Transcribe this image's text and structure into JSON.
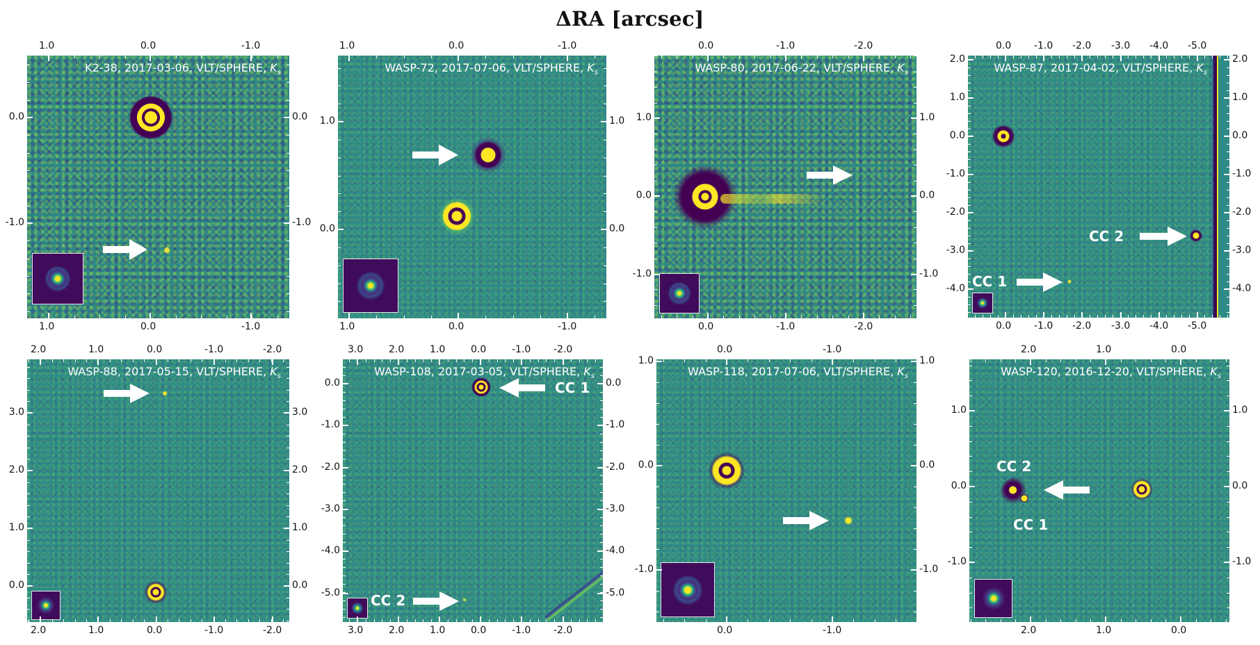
{
  "figure": {
    "title": "ΔRA [arcsec]",
    "colors": {
      "background_teal": "#2f8b86",
      "viridis_yellow": "#fde725",
      "viridis_dark": "#440154",
      "viridis_green": "#5ec962",
      "arrow": "#ffffff",
      "text": "#111111"
    }
  },
  "chart_data": [
    {
      "type": "heatmap",
      "title": "K2-38, 2017-03-06, VLT/SPHERE, Ks",
      "target": "K2-38",
      "date": "2017-03-06",
      "instrument": "VLT/SPHERE",
      "band": "Ks",
      "xlabel": "ΔRA [arcsec]",
      "x_ticks": [
        "1.0",
        "0.0",
        "-1.0"
      ],
      "y_ticks": [
        "0.0",
        "-1.0"
      ],
      "xlim": [
        1.22,
        -1.38
      ],
      "ylim": [
        -1.98,
        0.62
      ],
      "host_star": [
        0.0,
        0.0
      ],
      "companions": [
        {
          "label": "",
          "x": -0.15,
          "y": -1.37
        }
      ],
      "inset_psf": true
    },
    {
      "type": "heatmap",
      "title": "WASP-72, 2017-07-06, VLT/SPHERE, Ks",
      "target": "WASP-72",
      "date": "2017-07-06",
      "instrument": "VLT/SPHERE",
      "band": "Ks",
      "xlabel": "ΔRA [arcsec]",
      "x_ticks": [
        "1.0",
        "0.0",
        "-1.0"
      ],
      "y_ticks": [
        "1.0",
        "0.0"
      ],
      "xlim": [
        1.1,
        -1.3
      ],
      "ylim": [
        -1.0,
        1.45
      ],
      "host_star": [
        0.0,
        0.0
      ],
      "companions": [
        {
          "label": "",
          "x": -0.28,
          "y": 0.57
        }
      ],
      "inset_psf": true
    },
    {
      "type": "heatmap",
      "title": "WASP-80, 2017-06-22, VLT/SPHERE, Ks",
      "target": "WASP-80",
      "date": "2017-06-22",
      "instrument": "VLT/SPHERE",
      "band": "Ks",
      "xlabel": "ΔRA [arcsec]",
      "x_ticks": [
        "0.0",
        "-1.0",
        "-2.0"
      ],
      "y_ticks": [
        "1.0",
        "0.0",
        "-1.0"
      ],
      "xlim": [
        0.63,
        -2.65
      ],
      "ylim": [
        -1.55,
        1.8
      ],
      "host_star": [
        0.0,
        0.0
      ],
      "companions": [
        {
          "label": "",
          "x": -2.1,
          "y": 0.28
        }
      ],
      "inset_psf": true
    },
    {
      "type": "heatmap",
      "title": "WASP-87, 2017-04-02, VLT/SPHERE, Ks",
      "target": "WASP-87",
      "date": "2017-04-02",
      "instrument": "VLT/SPHERE",
      "band": "Ks",
      "xlabel": "ΔRA [arcsec]",
      "x_ticks": [
        "0.0",
        "-1.0",
        "-2.0",
        "-3.0",
        "-4.0",
        "-5.0"
      ],
      "y_ticks": [
        "2.0",
        "1.0",
        "0.0",
        "-1.0",
        "-2.0",
        "-3.0",
        "-4.0"
      ],
      "xlim": [
        0.9,
        -5.8
      ],
      "ylim": [
        -4.65,
        2.05
      ],
      "host_star": [
        0.0,
        0.0
      ],
      "companions": [
        {
          "label": "CC 1",
          "x": -1.7,
          "y": -3.75
        },
        {
          "label": "CC 2",
          "x": -4.95,
          "y": -2.55
        }
      ],
      "inset_psf": true
    },
    {
      "type": "heatmap",
      "title": "WASP-88, 2017-05-15, VLT/SPHERE, Ks",
      "target": "WASP-88",
      "date": "2017-05-15",
      "instrument": "VLT/SPHERE",
      "band": "Ks",
      "xlabel": "ΔRA [arcsec]",
      "x_ticks": [
        "2.0",
        "1.0",
        "0.0",
        "-1.0",
        "-2.0"
      ],
      "y_ticks": [
        "3.0",
        "2.0",
        "1.0",
        "0.0"
      ],
      "xlim": [
        2.23,
        -2.3
      ],
      "ylim": [
        -0.63,
        3.9
      ],
      "host_star": [
        0.0,
        0.0
      ],
      "companions": [
        {
          "label": "",
          "x": -0.15,
          "y": 3.33
        }
      ],
      "inset_psf": true
    },
    {
      "type": "heatmap",
      "title": "WASP-108, 2017-03-05, VLT/SPHERE, Ks",
      "target": "WASP-108",
      "date": "2017-03-05",
      "instrument": "VLT/SPHERE",
      "band": "Ks",
      "xlabel": "ΔRA [arcsec]",
      "x_ticks": [
        "3.0",
        "2.0",
        "1.0",
        "0.0",
        "-1.0",
        "-2.0"
      ],
      "y_ticks": [
        "0.0",
        "-1.0",
        "-2.0",
        "-3.0",
        "-4.0",
        "-5.0"
      ],
      "xlim": [
        3.3,
        -2.9
      ],
      "ylim": [
        -5.6,
        0.6
      ],
      "host_star": [
        0.0,
        0.0
      ],
      "companions": [
        {
          "label": "CC 1",
          "x": -0.05,
          "y": -0.1
        },
        {
          "label": "CC 2",
          "x": 0.38,
          "y": -5.02
        }
      ],
      "inset_psf": true
    },
    {
      "type": "heatmap",
      "title": "WASP-118, 2017-07-06, VLT/SPHERE, Ks",
      "target": "WASP-118",
      "date": "2017-07-06",
      "instrument": "VLT/SPHERE",
      "band": "Ks",
      "xlabel": "ΔRA [arcsec]",
      "x_ticks": [
        "0.0",
        "-1.0"
      ],
      "y_ticks": [
        "1.0",
        "0.0",
        "-1.0"
      ],
      "xlim": [
        0.67,
        -1.8
      ],
      "ylim": [
        -1.45,
        1.0
      ],
      "host_star": [
        0.0,
        0.0
      ],
      "companions": [
        {
          "label": "",
          "x": -1.16,
          "y": -0.46
        }
      ],
      "inset_psf": true
    },
    {
      "type": "heatmap",
      "title": "WASP-120, 2016-12-20, VLT/SPHERE, Ks",
      "target": "WASP-120",
      "date": "2016-12-20",
      "instrument": "VLT/SPHERE",
      "band": "Ks",
      "xlabel": "ΔRA [arcsec]",
      "x_ticks": [
        "2.0",
        "1.0",
        "0.0"
      ],
      "y_ticks": [
        "1.0",
        "0.0",
        "-1.0"
      ],
      "xlim": [
        2.8,
        -0.6
      ],
      "ylim": [
        -1.75,
        1.7
      ],
      "host_star": [
        0.0,
        0.0
      ],
      "companions": [
        {
          "label": "CC 2",
          "x": 2.2,
          "y": -0.05
        },
        {
          "label": "CC 1",
          "x": 2.1,
          "y": -0.13
        }
      ],
      "inset_psf": true
    }
  ],
  "panels": [
    {
      "name": "K2-38",
      "label_main": "K2-38, 2017-03-06, VLT/SPHERE, ",
      "band": "K",
      "band_sub": "s",
      "x_ticks": [
        "1.0",
        "0.0",
        "-1.0"
      ],
      "y_ticks": [
        "0.0",
        "-1.0"
      ],
      "cc": []
    },
    {
      "name": "WASP-72",
      "label_main": "WASP-72, 2017-07-06, VLT/SPHERE, ",
      "band": "K",
      "band_sub": "s",
      "x_ticks": [
        "1.0",
        "0.0",
        "-1.0"
      ],
      "y_ticks": [
        "1.0",
        "0.0"
      ],
      "cc": []
    },
    {
      "name": "WASP-80",
      "label_main": "WASP-80, 2017-06-22, VLT/SPHERE, ",
      "band": "K",
      "band_sub": "s",
      "x_ticks": [
        "0.0",
        "-1.0",
        "-2.0"
      ],
      "y_ticks": [
        "1.0",
        "0.0",
        "-1.0"
      ],
      "cc": []
    },
    {
      "name": "WASP-87",
      "label_main": "WASP-87, 2017-04-02, VLT/SPHERE, ",
      "band": "K",
      "band_sub": "s",
      "x_ticks": [
        "0.0",
        "-1.0",
        "-2.0",
        "-3.0",
        "-4.0",
        "-5.0"
      ],
      "y_ticks": [
        "2.0",
        "1.0",
        "0.0",
        "-1.0",
        "-2.0",
        "-3.0",
        "-4.0"
      ],
      "cc": [
        "CC 1",
        "CC 2"
      ]
    },
    {
      "name": "WASP-88",
      "label_main": "WASP-88, 2017-05-15, VLT/SPHERE, ",
      "band": "K",
      "band_sub": "s",
      "x_ticks": [
        "2.0",
        "1.0",
        "0.0",
        "-1.0",
        "-2.0"
      ],
      "y_ticks": [
        "3.0",
        "2.0",
        "1.0",
        "0.0"
      ],
      "cc": []
    },
    {
      "name": "WASP-108",
      "label_main": "WASP-108, 2017-03-05, VLT/SPHERE, ",
      "band": "K",
      "band_sub": "s",
      "x_ticks": [
        "3.0",
        "2.0",
        "1.0",
        "0.0",
        "-1.0",
        "-2.0"
      ],
      "y_ticks": [
        "0.0",
        "-1.0",
        "-2.0",
        "-3.0",
        "-4.0",
        "-5.0"
      ],
      "cc": [
        "CC 1",
        "CC 2"
      ]
    },
    {
      "name": "WASP-118",
      "label_main": "WASP-118, 2017-07-06, VLT/SPHERE, ",
      "band": "K",
      "band_sub": "s",
      "x_ticks": [
        "0.0",
        "-1.0"
      ],
      "y_ticks": [
        "1.0",
        "0.0",
        "-1.0"
      ],
      "cc": []
    },
    {
      "name": "WASP-120",
      "label_main": "WASP-120, 2016-12-20, VLT/SPHERE, ",
      "band": "K",
      "band_sub": "s",
      "x_ticks": [
        "2.0",
        "1.0",
        "0.0"
      ],
      "y_ticks": [
        "1.0",
        "0.0",
        "-1.0"
      ],
      "cc": [
        "CC 2",
        "CC 1"
      ]
    }
  ]
}
